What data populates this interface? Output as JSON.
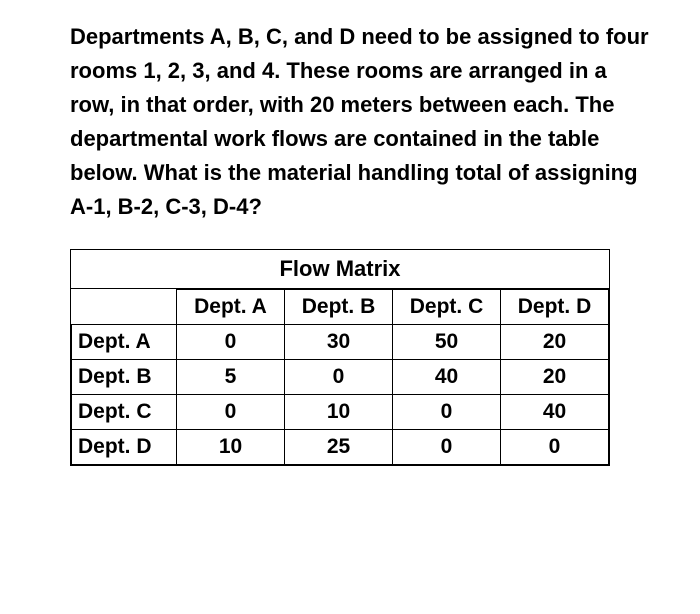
{
  "question": {
    "text": "Departments A, B, C, and D need to be assigned to four rooms 1, 2, 3, and 4. These rooms are arranged in a row, in that order, with 20 meters between each. The departmental work flows are contained in the table below. What is the material handling total of assigning A-1, B-2, C-3, D-4?"
  },
  "table": {
    "type": "table",
    "title": "Flow Matrix",
    "columns": [
      "Dept. A",
      "Dept. B",
      "Dept. C",
      "Dept. D"
    ],
    "row_labels": [
      "Dept. A",
      "Dept. B",
      "Dept. C",
      "Dept. D"
    ],
    "rows": [
      [
        "0",
        "30",
        "50",
        "20"
      ],
      [
        "5",
        "0",
        "40",
        "20"
      ],
      [
        "0",
        "10",
        "0",
        "40"
      ],
      [
        "10",
        "25",
        "0",
        "0"
      ]
    ],
    "border_color": "#000000",
    "background_color": "#ffffff",
    "text_color": "#000000",
    "font_size": 21,
    "font_weight": "bold"
  }
}
